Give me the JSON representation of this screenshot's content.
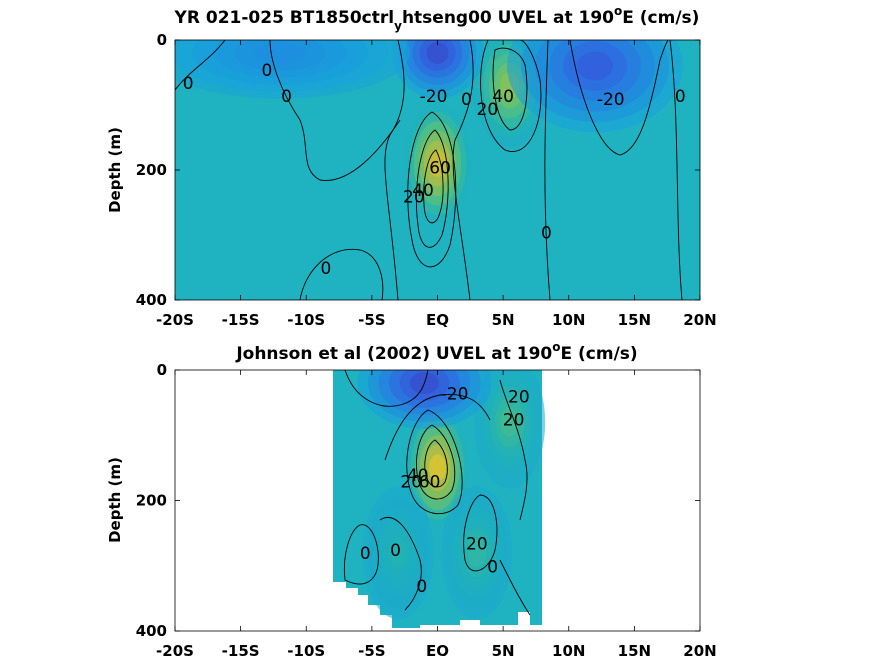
{
  "chart_data": [
    {
      "type": "contour",
      "title": {
        "main": "YR 021-025 BT1850ctrl",
        "sub": "y",
        "mid": "htseng00 UVEL at 190",
        "sup": "o",
        "end": "E (cm/s)"
      },
      "ylabel": "Depth (m)",
      "xticks": [
        "-20S",
        "-15S",
        "-10S",
        "-5S",
        "EQ",
        "5N",
        "10N",
        "15N",
        "20N"
      ],
      "yticks": [
        "0",
        "200",
        "400"
      ],
      "xlim": [
        -20,
        20
      ],
      "ylim": [
        0,
        400
      ],
      "y_reversed": true,
      "data_extent": [
        -20,
        20
      ],
      "colormap": "parula",
      "clim": [
        -40,
        80
      ],
      "features": [
        {
          "kind": "core",
          "lat": 0,
          "depth": 190,
          "value": 65,
          "sx": 1.4,
          "sy": 55
        },
        {
          "kind": "jet",
          "lat": 5.5,
          "depth": 70,
          "value": 45,
          "sx": 1.6,
          "sy": 55
        },
        {
          "kind": "westward",
          "lat": 0,
          "depth": 20,
          "value": -30,
          "sx": 2.0,
          "sy": 40
        },
        {
          "kind": "westward",
          "lat": 12,
          "depth": 40,
          "value": -25,
          "sx": 4.0,
          "sy": 60
        },
        {
          "kind": "westward",
          "lat": -12,
          "depth": 20,
          "value": -10,
          "sx": 6.0,
          "sy": 40
        }
      ],
      "contour_labels": [
        {
          "text": "0",
          "lat": -19,
          "depth": 75
        },
        {
          "text": "0",
          "lat": -13,
          "depth": 55
        },
        {
          "text": "0",
          "lat": -11.5,
          "depth": 95
        },
        {
          "text": "-20",
          "lat": -0.3,
          "depth": 95
        },
        {
          "text": "0",
          "lat": 2.2,
          "depth": 100
        },
        {
          "text": "20",
          "lat": 3.8,
          "depth": 115
        },
        {
          "text": "40",
          "lat": 5,
          "depth": 95
        },
        {
          "text": "-20",
          "lat": 13.2,
          "depth": 100
        },
        {
          "text": "0",
          "lat": 18.5,
          "depth": 95
        },
        {
          "text": "60",
          "lat": 0.2,
          "depth": 205
        },
        {
          "text": "40",
          "lat": -1.1,
          "depth": 240
        },
        {
          "text": "20",
          "lat": -1.8,
          "depth": 250
        },
        {
          "text": "0",
          "lat": 8.3,
          "depth": 305
        },
        {
          "text": "0",
          "lat": -8.5,
          "depth": 360
        }
      ]
    },
    {
      "type": "contour",
      "title": {
        "main": "Johnson et al (2002) UVEL at 190",
        "sup": "o",
        "end": "E (cm/s)"
      },
      "ylabel": "Depth (m)",
      "xticks": [
        "-20S",
        "-15S",
        "-10S",
        "-5S",
        "EQ",
        "5N",
        "10N",
        "15N",
        "20N"
      ],
      "yticks": [
        "0",
        "200",
        "400"
      ],
      "xlim": [
        -20,
        20
      ],
      "ylim": [
        0,
        400
      ],
      "y_reversed": true,
      "data_extent": [
        -8,
        8
      ],
      "colormap": "parula",
      "clim": [
        -40,
        80
      ],
      "features": [
        {
          "kind": "core",
          "lat": 0,
          "depth": 150,
          "value": 70,
          "sx": 1.3,
          "sy": 55
        },
        {
          "kind": "jet",
          "lat": 5.5,
          "depth": 80,
          "value": 25,
          "sx": 1.5,
          "sy": 60
        },
        {
          "kind": "westward",
          "lat": -1,
          "depth": 20,
          "value": -30,
          "sx": 3.0,
          "sy": 40
        },
        {
          "kind": "jet",
          "lat": 3,
          "depth": 280,
          "value": 20,
          "sx": 1.5,
          "sy": 60
        },
        {
          "kind": "jet",
          "lat": -3,
          "depth": 280,
          "value": 15,
          "sx": 1.5,
          "sy": 60
        }
      ],
      "contour_labels": [
        {
          "text": "-20",
          "lat": 1.3,
          "depth": 45
        },
        {
          "text": "20",
          "lat": 5.8,
          "depth": 85
        },
        {
          "text": "20",
          "lat": 6.2,
          "depth": 50
        },
        {
          "text": "20",
          "lat": -2,
          "depth": 180
        },
        {
          "text": "40",
          "lat": -1.5,
          "depth": 170
        },
        {
          "text": "60",
          "lat": -0.6,
          "depth": 180
        },
        {
          "text": "0",
          "lat": -5.5,
          "depth": 290
        },
        {
          "text": "0",
          "lat": -3.2,
          "depth": 285
        },
        {
          "text": "20",
          "lat": 3.0,
          "depth": 275
        },
        {
          "text": "0",
          "lat": 4.2,
          "depth": 310
        },
        {
          "text": "0",
          "lat": -1.2,
          "depth": 340
        }
      ]
    }
  ]
}
